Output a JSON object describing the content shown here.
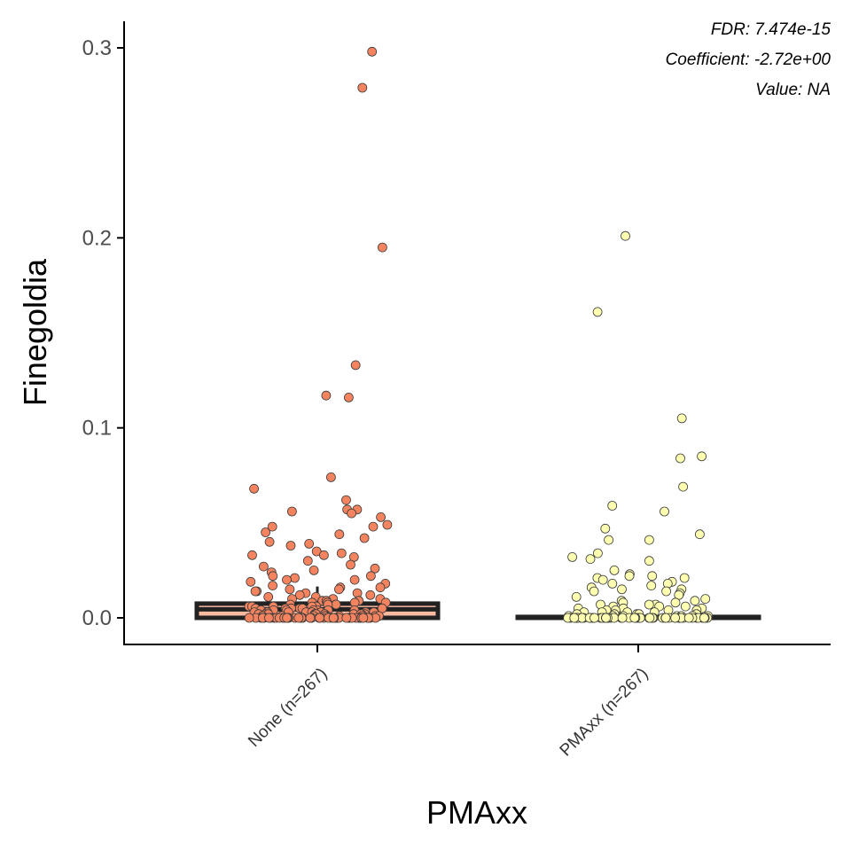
{
  "chart_data": {
    "type": "box",
    "ylabel": "Finegoldia",
    "xlabel": "PMAxx",
    "ylim": [
      -0.014,
      0.314
    ],
    "yticks": [
      0.0,
      0.1,
      0.2,
      0.3
    ],
    "ytick_labels": [
      "0.0",
      "0.1",
      "0.2",
      "0.3"
    ],
    "categories": [
      "None (n=267)",
      "PMAxx (n=267)"
    ],
    "annotations": [
      "FDR: 7.474e-15",
      "Coefficient: -2.72e+00",
      "Value: NA"
    ],
    "grid": false,
    "legend": "none",
    "colors": {
      "None": "#f4845f",
      "None_box": "#fcbba1",
      "PMAxx": "#ffffb2",
      "PMAxx_box": "#ffffcc",
      "outline": "#222222"
    },
    "boxes": [
      {
        "category": "None (n=267)",
        "q1": 0.0,
        "median": 0.0045,
        "q3": 0.0075,
        "whisker_low": 0.0,
        "whisker_high": 0.0165
      },
      {
        "category": "PMAxx (n=267)",
        "q1": 0.0,
        "median": 0.0,
        "q3": 0.0005,
        "whisker_low": 0.0,
        "whisker_high": 0.0005
      }
    ],
    "series": [
      {
        "category": "None (n=267)",
        "values": [
          0.298,
          0.279,
          0.195,
          0.133,
          0.117,
          0.116,
          0.074,
          0.068,
          0.062,
          0.057,
          0.057,
          0.056,
          0.055,
          0.053,
          0.049,
          0.048,
          0.048,
          0.045,
          0.044,
          0.042,
          0.04,
          0.039,
          0.038,
          0.035,
          0.034,
          0.033,
          0.033,
          0.032,
          0.03,
          0.028,
          0.027,
          0.026,
          0.025,
          0.024,
          0.022,
          0.022,
          0.021,
          0.02,
          0.02,
          0.019,
          0.018,
          0.017,
          0.016,
          0.016,
          0.015,
          0.015,
          0.014,
          0.014,
          0.013,
          0.013,
          0.012,
          0.012,
          0.011,
          0.011,
          0.01,
          0.01,
          0.01,
          0.009,
          0.009,
          0.009,
          0.008,
          0.008,
          0.008,
          0.008,
          0.007,
          0.007,
          0.007,
          0.007,
          0.006,
          0.006,
          0.006,
          0.006,
          0.006,
          0.005,
          0.005,
          0.005,
          0.005,
          0.005,
          0.005,
          0.004,
          0.004,
          0.004,
          0.004,
          0.004,
          0.004,
          0.004,
          0.003,
          0.003,
          0.003,
          0.003,
          0.003,
          0.003,
          0.003,
          0.003,
          0.002,
          0.002,
          0.002,
          0.002,
          0.002,
          0.002,
          0.002,
          0.002,
          0.002,
          0.001,
          0.001,
          0.001,
          0.001,
          0.001,
          0.001,
          0.001,
          0.001,
          0.001,
          0.001,
          0.001,
          0.0,
          0.0,
          0.0,
          0.0,
          0.0,
          0.0,
          0.0,
          0.0,
          0.0,
          0.0,
          0.0,
          0.0,
          0.0,
          0.0,
          0.0,
          0.0,
          0.0,
          0.0,
          0.0,
          0.0,
          0.0,
          0.0,
          0.0,
          0.0,
          0.0,
          0.0,
          0.0,
          0.0,
          0.0,
          0.0,
          0.0,
          0.0,
          0.0,
          0.0,
          0.0,
          0.0,
          0.0,
          0.0,
          0.0,
          0.0,
          0.0,
          0.0,
          0.0,
          0.0,
          0.0,
          0.0
        ]
      },
      {
        "category": "PMAxx (n=267)",
        "values": [
          0.201,
          0.161,
          0.105,
          0.085,
          0.084,
          0.069,
          0.059,
          0.056,
          0.047,
          0.044,
          0.041,
          0.041,
          0.034,
          0.032,
          0.031,
          0.03,
          0.025,
          0.023,
          0.022,
          0.022,
          0.021,
          0.021,
          0.02,
          0.019,
          0.018,
          0.018,
          0.017,
          0.016,
          0.015,
          0.015,
          0.014,
          0.014,
          0.013,
          0.012,
          0.011,
          0.01,
          0.009,
          0.009,
          0.008,
          0.008,
          0.007,
          0.007,
          0.007,
          0.006,
          0.006,
          0.006,
          0.005,
          0.005,
          0.005,
          0.004,
          0.004,
          0.004,
          0.004,
          0.003,
          0.003,
          0.003,
          0.003,
          0.002,
          0.002,
          0.002,
          0.002,
          0.002,
          0.001,
          0.001,
          0.001,
          0.001,
          0.001,
          0.001,
          0.001,
          0.0,
          0.0,
          0.0,
          0.0,
          0.0,
          0.0,
          0.0,
          0.0,
          0.0,
          0.0,
          0.0,
          0.0,
          0.0,
          0.0,
          0.0,
          0.0,
          0.0,
          0.0,
          0.0,
          0.0,
          0.0,
          0.0,
          0.0,
          0.0,
          0.0,
          0.0,
          0.0,
          0.0,
          0.0,
          0.0,
          0.0,
          0.0,
          0.0,
          0.0,
          0.0,
          0.0,
          0.0,
          0.0,
          0.0,
          0.0,
          0.0,
          0.0,
          0.0,
          0.0,
          0.0,
          0.0,
          0.0,
          0.0,
          0.0,
          0.0,
          0.0,
          0.0,
          0.0,
          0.0,
          0.0,
          0.0,
          0.0,
          0.0,
          0.0,
          0.0,
          0.0
        ]
      }
    ]
  }
}
